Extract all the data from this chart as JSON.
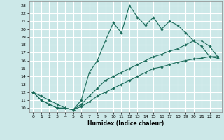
{
  "title": "",
  "xlabel": "Humidex (Indice chaleur)",
  "background_color": "#cce8e8",
  "grid_color": "#ffffff",
  "line_color": "#1a6b5a",
  "xlim": [
    -0.5,
    23.5
  ],
  "ylim": [
    9.5,
    23.5
  ],
  "yticks": [
    10,
    11,
    12,
    13,
    14,
    15,
    16,
    17,
    18,
    19,
    20,
    21,
    22,
    23
  ],
  "xticks": [
    0,
    1,
    2,
    3,
    4,
    5,
    6,
    7,
    8,
    9,
    10,
    11,
    12,
    13,
    14,
    15,
    16,
    17,
    18,
    19,
    20,
    21,
    22,
    23
  ],
  "series": [
    {
      "x": [
        0,
        1,
        2,
        3,
        4,
        5,
        6,
        7,
        8,
        9,
        10,
        11,
        12,
        13,
        14,
        15,
        16,
        17,
        18,
        19,
        20,
        21,
        22,
        23
      ],
      "y": [
        12,
        11,
        10.5,
        10,
        10,
        9.8,
        11,
        14.5,
        16,
        18.5,
        20.8,
        19.5,
        23,
        21.5,
        20.5,
        21.5,
        20,
        21,
        20.5,
        19.5,
        18.5,
        17.8,
        16.5,
        16.5
      ]
    },
    {
      "x": [
        0,
        1,
        2,
        3,
        4,
        5,
        6,
        7,
        8,
        9,
        10,
        11,
        12,
        13,
        14,
        15,
        16,
        17,
        18,
        19,
        20,
        21,
        22,
        23
      ],
      "y": [
        12,
        11,
        10.5,
        10,
        10,
        9.8,
        10.5,
        11.5,
        12.5,
        13.5,
        14,
        14.5,
        15,
        15.5,
        16,
        16.5,
        16.8,
        17.2,
        17.5,
        18,
        18.5,
        18.5,
        17.8,
        16.5
      ]
    },
    {
      "x": [
        0,
        1,
        2,
        3,
        4,
        5,
        6,
        7,
        8,
        9,
        10,
        11,
        12,
        13,
        14,
        15,
        16,
        17,
        18,
        19,
        20,
        21,
        22,
        23
      ],
      "y": [
        12,
        11.5,
        11,
        10.5,
        10,
        9.8,
        10.2,
        10.8,
        11.5,
        12,
        12.5,
        13,
        13.5,
        14,
        14.5,
        15,
        15.2,
        15.5,
        15.8,
        16,
        16.2,
        16.3,
        16.5,
        16.3
      ]
    }
  ]
}
